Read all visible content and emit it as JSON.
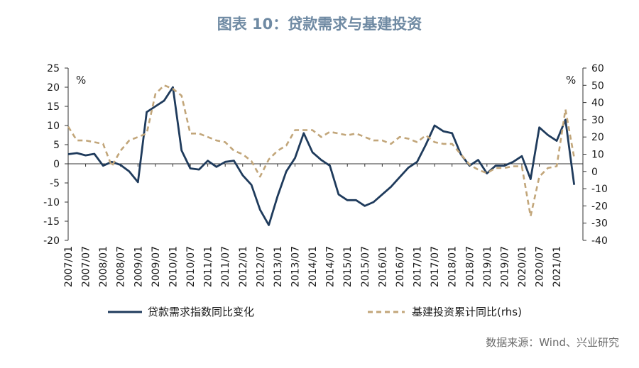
{
  "title": "图表 10：贷款需求与基建投资",
  "source": "数据来源：Wind、兴业研究",
  "chart_data": {
    "type": "line",
    "left_unit": "%",
    "right_unit": "%",
    "left_ylim": [
      -20,
      25
    ],
    "left_ticks": [
      25,
      20,
      15,
      10,
      5,
      0,
      -5,
      -10,
      -15,
      -20
    ],
    "right_ylim": [
      -40,
      60
    ],
    "right_ticks": [
      60,
      50,
      40,
      30,
      20,
      10,
      0,
      -10,
      -20,
      -30,
      -40
    ],
    "x_tick_labels": [
      "2007/01",
      "2007/07",
      "2008/01",
      "2008/07",
      "2009/01",
      "2009/07",
      "2010/01",
      "2010/07",
      "2011/01",
      "2011/07",
      "2012/01",
      "2012/07",
      "2013/01",
      "2013/07",
      "2014/01",
      "2014/07",
      "2015/01",
      "2015/07",
      "2016/01",
      "2016/07",
      "2017/01",
      "2017/07",
      "2018/01",
      "2018/07",
      "2019/01",
      "2019/07",
      "2020/01",
      "2020/07",
      "2021/01"
    ],
    "legend_position": "bottom",
    "series": [
      {
        "name": "贷款需求指数同比变化",
        "axis": "left",
        "color": "#1f3b5c",
        "style": "solid",
        "points": [
          [
            "2007/01",
            2.5
          ],
          [
            "2007/04",
            2.8
          ],
          [
            "2007/07",
            2.2
          ],
          [
            "2007/10",
            2.6
          ],
          [
            "2008/01",
            -0.5
          ],
          [
            "2008/04",
            0.5
          ],
          [
            "2008/07",
            -0.3
          ],
          [
            "2008/10",
            -2.0
          ],
          [
            "2009/01",
            -4.8
          ],
          [
            "2009/04",
            13.5
          ],
          [
            "2009/07",
            15.0
          ],
          [
            "2009/10",
            16.5
          ],
          [
            "2010/01",
            20.0
          ],
          [
            "2010/04",
            3.5
          ],
          [
            "2010/07",
            -1.2
          ],
          [
            "2010/10",
            -1.5
          ],
          [
            "2011/01",
            0.8
          ],
          [
            "2011/04",
            -0.8
          ],
          [
            "2011/07",
            0.5
          ],
          [
            "2011/10",
            0.8
          ],
          [
            "2012/01",
            -3.0
          ],
          [
            "2012/04",
            -5.5
          ],
          [
            "2012/07",
            -12.0
          ],
          [
            "2012/10",
            -16.0
          ],
          [
            "2013/01",
            -8.5
          ],
          [
            "2013/04",
            -2.0
          ],
          [
            "2013/07",
            1.5
          ],
          [
            "2013/10",
            8.0
          ],
          [
            "2014/01",
            3.0
          ],
          [
            "2014/04",
            1.0
          ],
          [
            "2014/07",
            -0.5
          ],
          [
            "2014/10",
            -8.0
          ],
          [
            "2015/01",
            -9.5
          ],
          [
            "2015/04",
            -9.5
          ],
          [
            "2015/07",
            -11.0
          ],
          [
            "2015/10",
            -10.0
          ],
          [
            "2016/01",
            -8.0
          ],
          [
            "2016/04",
            -6.0
          ],
          [
            "2016/07",
            -3.5
          ],
          [
            "2016/10",
            -1.0
          ],
          [
            "2017/01",
            0.5
          ],
          [
            "2017/04",
            5.0
          ],
          [
            "2017/07",
            10.0
          ],
          [
            "2017/10",
            8.5
          ],
          [
            "2018/01",
            8.0
          ],
          [
            "2018/04",
            2.5
          ],
          [
            "2018/07",
            -0.5
          ],
          [
            "2018/10",
            1.0
          ],
          [
            "2019/01",
            -2.5
          ],
          [
            "2019/04",
            -0.5
          ],
          [
            "2019/07",
            -0.5
          ],
          [
            "2019/10",
            0.5
          ],
          [
            "2020/01",
            2.0
          ],
          [
            "2020/04",
            -4.0
          ],
          [
            "2020/07",
            9.5
          ],
          [
            "2020/10",
            7.5
          ],
          [
            "2021/01",
            6.0
          ],
          [
            "2021/04",
            11.5
          ],
          [
            "2021/07",
            -5.5
          ]
        ]
      },
      {
        "name": "基建投资累计同比(rhs)",
        "axis": "right",
        "color": "#c2a67a",
        "style": "dashed",
        "points": [
          [
            "2007/01",
            26
          ],
          [
            "2007/04",
            18
          ],
          [
            "2007/07",
            18
          ],
          [
            "2007/10",
            17
          ],
          [
            "2008/01",
            16
          ],
          [
            "2008/04",
            3
          ],
          [
            "2008/07",
            12
          ],
          [
            "2008/10",
            18
          ],
          [
            "2009/01",
            20
          ],
          [
            "2009/04",
            22
          ],
          [
            "2009/07",
            45
          ],
          [
            "2009/10",
            50
          ],
          [
            "2010/01",
            48
          ],
          [
            "2010/04",
            44
          ],
          [
            "2010/07",
            22
          ],
          [
            "2010/10",
            22
          ],
          [
            "2011/01",
            20
          ],
          [
            "2011/04",
            18
          ],
          [
            "2011/07",
            17
          ],
          [
            "2011/10",
            12
          ],
          [
            "2012/01",
            10
          ],
          [
            "2012/04",
            6
          ],
          [
            "2012/07",
            -3
          ],
          [
            "2012/10",
            7
          ],
          [
            "2013/01",
            12
          ],
          [
            "2013/04",
            15
          ],
          [
            "2013/07",
            24
          ],
          [
            "2013/10",
            24
          ],
          [
            "2014/01",
            24
          ],
          [
            "2014/04",
            20
          ],
          [
            "2014/07",
            23
          ],
          [
            "2014/10",
            22
          ],
          [
            "2015/01",
            21
          ],
          [
            "2015/04",
            22
          ],
          [
            "2015/07",
            20
          ],
          [
            "2015/10",
            18
          ],
          [
            "2016/01",
            18
          ],
          [
            "2016/04",
            16
          ],
          [
            "2016/07",
            20
          ],
          [
            "2016/10",
            19
          ],
          [
            "2017/01",
            17
          ],
          [
            "2017/04",
            21
          ],
          [
            "2017/07",
            17
          ],
          [
            "2017/10",
            16
          ],
          [
            "2018/01",
            16
          ],
          [
            "2018/04",
            10
          ],
          [
            "2018/07",
            4
          ],
          [
            "2018/10",
            1
          ],
          [
            "2019/01",
            -1
          ],
          [
            "2019/04",
            2
          ],
          [
            "2019/07",
            2
          ],
          [
            "2019/10",
            3
          ],
          [
            "2020/01",
            3
          ],
          [
            "2020/04",
            -26
          ],
          [
            "2020/07",
            -3
          ],
          [
            "2020/10",
            2
          ],
          [
            "2021/01",
            3
          ],
          [
            "2021/04",
            36
          ],
          [
            "2021/07",
            8
          ]
        ]
      }
    ]
  }
}
